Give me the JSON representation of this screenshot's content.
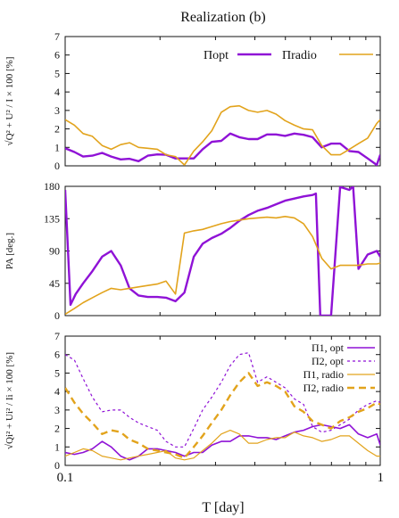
{
  "title": "Realization (b)",
  "xlabel": "T [day]",
  "colors": {
    "purple": "#8f12d6",
    "orange": "#e2a31c"
  },
  "chart_data": [
    {
      "type": "line",
      "ylabel": "√Q² + U² / I × 100 [%]",
      "ylim": [
        0,
        7
      ],
      "yticks": [
        0,
        1,
        2,
        3,
        4,
        5,
        6,
        7
      ],
      "xscale": "log",
      "xlim": [
        0.1,
        1
      ],
      "legend": "top-right",
      "series": [
        {
          "name": "Πopt",
          "color": "purple",
          "dash": "solid",
          "width": 2.4,
          "x": [
            0.1,
            0.107,
            0.114,
            0.122,
            0.131,
            0.14,
            0.15,
            0.16,
            0.171,
            0.183,
            0.196,
            0.209,
            0.224,
            0.239,
            0.256,
            0.273,
            0.292,
            0.313,
            0.334,
            0.357,
            0.382,
            0.408,
            0.437,
            0.467,
            0.499,
            0.534,
            0.571,
            0.61,
            0.652,
            0.698,
            0.746,
            0.798,
            0.853,
            0.912,
            0.975,
            1.0
          ],
          "y": [
            0.95,
            0.75,
            0.5,
            0.55,
            0.7,
            0.5,
            0.35,
            0.38,
            0.25,
            0.55,
            0.62,
            0.6,
            0.4,
            0.4,
            0.4,
            0.9,
            1.3,
            1.35,
            1.75,
            1.55,
            1.45,
            1.45,
            1.7,
            1.7,
            1.62,
            1.75,
            1.68,
            1.55,
            1.0,
            1.2,
            1.2,
            0.8,
            0.75,
            0.4,
            0.05,
            0.6
          ]
        },
        {
          "name": "Πradio",
          "color": "orange",
          "dash": "solid",
          "width": 1.6,
          "x": [
            0.1,
            0.107,
            0.114,
            0.122,
            0.131,
            0.14,
            0.15,
            0.16,
            0.171,
            0.183,
            0.196,
            0.209,
            0.224,
            0.239,
            0.256,
            0.273,
            0.292,
            0.313,
            0.334,
            0.357,
            0.382,
            0.408,
            0.437,
            0.467,
            0.499,
            0.534,
            0.571,
            0.61,
            0.652,
            0.698,
            0.746,
            0.798,
            0.853,
            0.912,
            0.975,
            1.0
          ],
          "y": [
            2.5,
            2.2,
            1.75,
            1.6,
            1.1,
            0.9,
            1.15,
            1.25,
            1.0,
            0.95,
            0.9,
            0.6,
            0.5,
            0.05,
            0.8,
            1.3,
            1.9,
            2.9,
            3.2,
            3.25,
            3.0,
            2.9,
            3.0,
            2.8,
            2.45,
            2.2,
            2.0,
            1.95,
            1.1,
            0.6,
            0.6,
            0.9,
            1.2,
            1.5,
            2.3,
            2.5
          ]
        }
      ]
    },
    {
      "type": "line",
      "ylabel": "PA [deg.]",
      "ylim": [
        0,
        180
      ],
      "yticks": [
        0,
        45,
        90,
        135,
        180
      ],
      "xscale": "log",
      "xlim": [
        0.1,
        1
      ],
      "series": [
        {
          "name": "",
          "color": "purple",
          "dash": "solid",
          "width": 2.4,
          "x": [
            0.1,
            0.104,
            0.108,
            0.114,
            0.122,
            0.131,
            0.14,
            0.15,
            0.16,
            0.171,
            0.183,
            0.196,
            0.209,
            0.224,
            0.239,
            0.256,
            0.273,
            0.292,
            0.313,
            0.334,
            0.357,
            0.382,
            0.408,
            0.437,
            0.467,
            0.499,
            0.534,
            0.571,
            0.61,
            0.625,
            0.645,
            0.66,
            0.698,
            0.746,
            0.76,
            0.798,
            0.82,
            0.853,
            0.912,
            0.975,
            1.0
          ],
          "y": [
            175,
            15,
            30,
            45,
            62,
            82,
            90,
            70,
            38,
            28,
            26,
            26,
            25,
            20,
            32,
            82,
            100,
            108,
            114,
            122,
            132,
            140,
            146,
            150,
            155,
            160,
            163,
            166,
            168,
            170,
            0,
            0,
            0,
            180,
            178,
            175,
            180,
            65,
            85,
            90,
            82
          ]
        },
        {
          "name": "",
          "color": "orange",
          "dash": "solid",
          "width": 1.6,
          "x": [
            0.1,
            0.107,
            0.114,
            0.122,
            0.131,
            0.14,
            0.15,
            0.16,
            0.171,
            0.183,
            0.196,
            0.209,
            0.224,
            0.239,
            0.256,
            0.273,
            0.292,
            0.313,
            0.334,
            0.357,
            0.382,
            0.408,
            0.437,
            0.467,
            0.499,
            0.534,
            0.571,
            0.61,
            0.652,
            0.698,
            0.746,
            0.798,
            0.853,
            0.912,
            0.975,
            1.0
          ],
          "y": [
            2,
            10,
            18,
            25,
            32,
            38,
            36,
            38,
            40,
            42,
            44,
            48,
            30,
            115,
            118,
            120,
            124,
            128,
            131,
            133,
            135,
            136,
            137,
            136,
            138,
            136,
            128,
            110,
            80,
            65,
            70,
            70,
            70,
            72,
            72,
            73
          ]
        }
      ]
    },
    {
      "type": "line",
      "ylabel": "√Qi² + Ui² / Ii × 100 [%]",
      "ylim": [
        0,
        7
      ],
      "yticks": [
        0,
        1,
        2,
        3,
        4,
        5,
        6,
        7
      ],
      "xscale": "log",
      "xlim": [
        0.1,
        1
      ],
      "xticks": [
        0.1,
        1
      ],
      "legend": "top-right",
      "series": [
        {
          "name": "Π1, opt",
          "color": "purple",
          "dash": "solid",
          "width": 1.6,
          "x": [
            0.1,
            0.107,
            0.114,
            0.122,
            0.131,
            0.14,
            0.15,
            0.16,
            0.171,
            0.183,
            0.196,
            0.209,
            0.224,
            0.239,
            0.256,
            0.273,
            0.292,
            0.313,
            0.334,
            0.357,
            0.382,
            0.408,
            0.437,
            0.467,
            0.499,
            0.534,
            0.571,
            0.61,
            0.652,
            0.698,
            0.746,
            0.798,
            0.853,
            0.912,
            0.975,
            1.0
          ],
          "y": [
            0.7,
            0.6,
            0.7,
            0.9,
            1.3,
            1.0,
            0.5,
            0.3,
            0.5,
            0.9,
            0.9,
            0.8,
            0.7,
            0.5,
            0.7,
            0.7,
            1.1,
            1.3,
            1.3,
            1.6,
            1.6,
            1.5,
            1.5,
            1.4,
            1.6,
            1.8,
            1.9,
            2.1,
            2.2,
            2.1,
            2.0,
            2.2,
            1.7,
            1.5,
            1.7,
            1.1
          ]
        },
        {
          "name": "Π2, opt",
          "color": "purple",
          "dash": "short",
          "width": 1.2,
          "x": [
            0.1,
            0.107,
            0.114,
            0.122,
            0.131,
            0.14,
            0.15,
            0.16,
            0.171,
            0.183,
            0.196,
            0.209,
            0.224,
            0.239,
            0.256,
            0.273,
            0.292,
            0.313,
            0.334,
            0.357,
            0.382,
            0.408,
            0.437,
            0.467,
            0.499,
            0.534,
            0.571,
            0.61,
            0.652,
            0.698,
            0.746,
            0.798,
            0.853,
            0.912,
            0.975,
            1.0
          ],
          "y": [
            6.0,
            5.7,
            4.7,
            3.7,
            2.9,
            3.0,
            3.0,
            2.6,
            2.3,
            2.1,
            1.9,
            1.3,
            1.0,
            1.0,
            2.0,
            3.0,
            3.7,
            4.5,
            5.4,
            6.0,
            6.1,
            4.5,
            4.8,
            4.5,
            4.2,
            3.6,
            3.3,
            2.1,
            1.8,
            1.9,
            2.2,
            2.5,
            3.0,
            3.3,
            3.5,
            3.4
          ]
        },
        {
          "name": "Π1, radio",
          "color": "orange",
          "dash": "solid",
          "width": 1.2,
          "x": [
            0.1,
            0.107,
            0.114,
            0.122,
            0.131,
            0.14,
            0.15,
            0.16,
            0.171,
            0.183,
            0.196,
            0.209,
            0.224,
            0.239,
            0.256,
            0.273,
            0.292,
            0.313,
            0.334,
            0.357,
            0.382,
            0.408,
            0.437,
            0.467,
            0.499,
            0.534,
            0.571,
            0.61,
            0.652,
            0.698,
            0.746,
            0.798,
            0.853,
            0.912,
            0.975,
            1.0
          ],
          "y": [
            0.5,
            0.7,
            0.9,
            0.8,
            0.5,
            0.4,
            0.3,
            0.4,
            0.5,
            0.6,
            0.7,
            0.8,
            0.4,
            0.3,
            0.4,
            0.8,
            1.2,
            1.7,
            1.9,
            1.7,
            1.2,
            1.2,
            1.4,
            1.5,
            1.5,
            1.8,
            1.6,
            1.5,
            1.3,
            1.4,
            1.6,
            1.6,
            1.2,
            0.8,
            0.5,
            0.5
          ]
        },
        {
          "name": "Π2, radio",
          "color": "orange",
          "dash": "long",
          "width": 2.4,
          "x": [
            0.1,
            0.107,
            0.114,
            0.122,
            0.131,
            0.14,
            0.15,
            0.16,
            0.171,
            0.183,
            0.196,
            0.209,
            0.224,
            0.239,
            0.256,
            0.273,
            0.292,
            0.313,
            0.334,
            0.357,
            0.382,
            0.408,
            0.437,
            0.467,
            0.499,
            0.534,
            0.571,
            0.61,
            0.652,
            0.698,
            0.746,
            0.798,
            0.853,
            0.912,
            0.975,
            1.0
          ],
          "y": [
            4.2,
            3.4,
            2.8,
            2.3,
            1.7,
            1.9,
            1.8,
            1.4,
            1.2,
            0.9,
            0.8,
            0.7,
            0.6,
            0.4,
            1.0,
            1.6,
            2.3,
            3.0,
            3.8,
            4.5,
            5.0,
            4.3,
            4.5,
            4.3,
            4.0,
            3.2,
            2.9,
            2.4,
            2.2,
            2.0,
            2.4,
            2.6,
            2.9,
            3.1,
            3.4,
            3.3
          ]
        }
      ]
    }
  ]
}
